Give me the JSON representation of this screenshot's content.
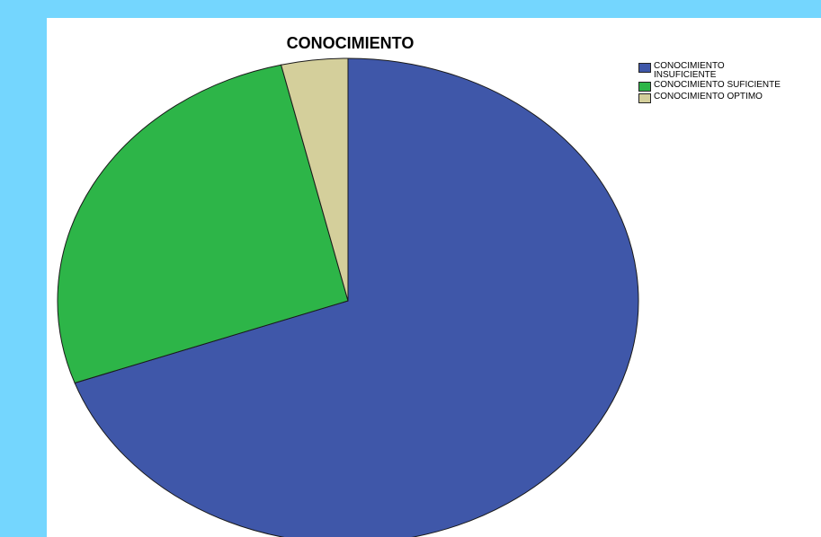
{
  "chart_data": {
    "type": "pie",
    "title": "CONOCIMIENTO",
    "categories": [
      "CONOCIMIENTO INSUFICIENTE",
      "CONOCIMIENTO SUFICIENTE",
      "CONOCIMIENTO OPTIMO"
    ],
    "values": [
      69.5,
      26.8,
      3.7
    ],
    "unit": "%",
    "colors": [
      "#3f57a9",
      "#2db548",
      "#d4cf9b"
    ],
    "legend": "top-right"
  }
}
